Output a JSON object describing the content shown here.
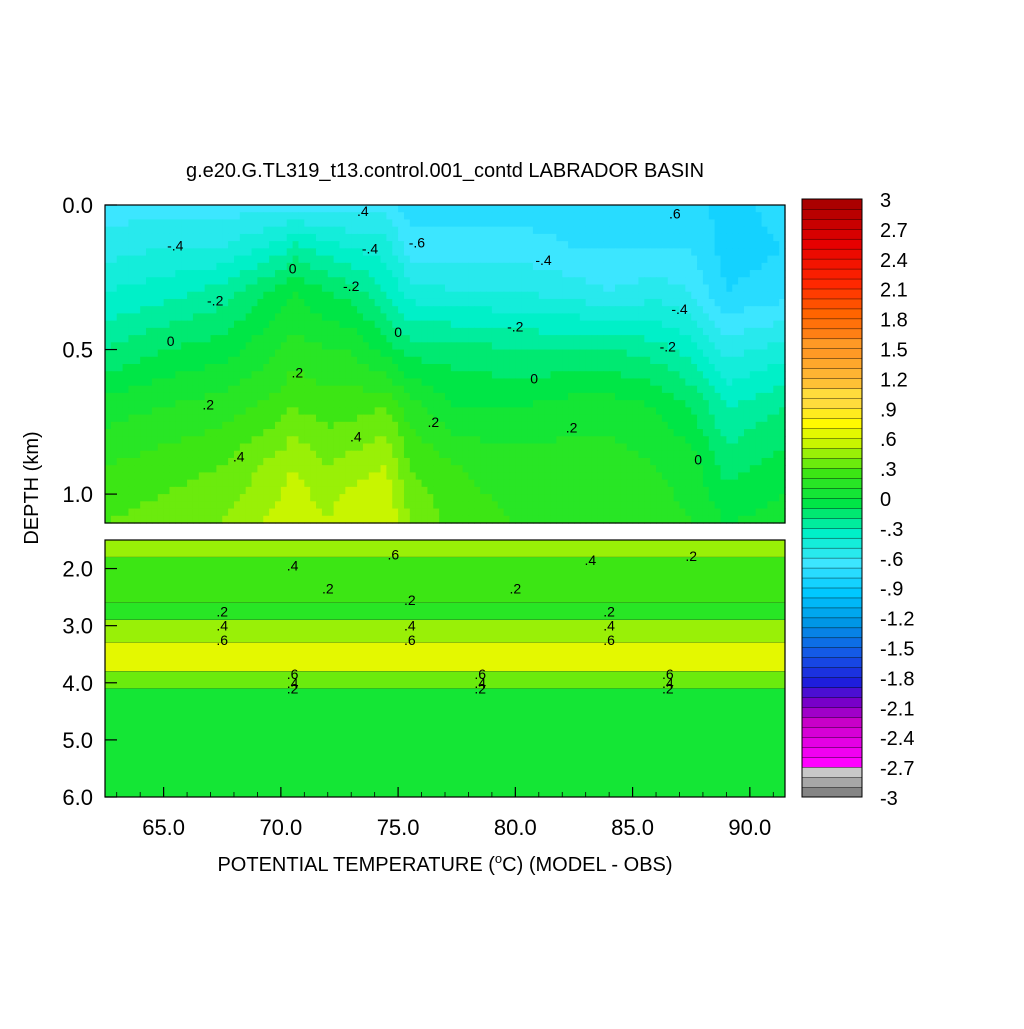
{
  "chart_data": {
    "type": "heatmap",
    "title": "g.e20.G.TL319_t13.control.001_contd LABRADOR BASIN",
    "xlabel_main": "POTENTIAL TEMPERATURE (",
    "xlabel_sup": "o",
    "xlabel_rest": "C) (MODEL - OBS)",
    "ylabel": "DEPTH (km)",
    "xlim": [
      62.5,
      91.5
    ],
    "x_ticks": [
      65.0,
      70.0,
      75.0,
      80.0,
      85.0,
      90.0
    ],
    "x_tick_labels": [
      "65.0",
      "70.0",
      "75.0",
      "80.0",
      "85.0",
      "90.0"
    ],
    "upper_panel": {
      "ylim": [
        0.0,
        1.1
      ],
      "y_ticks": [
        0.0,
        0.5,
        1.0
      ],
      "y_tick_labels": [
        "0.0",
        "0.5",
        "1.0"
      ]
    },
    "lower_panel": {
      "ylim": [
        1.5,
        6.0
      ],
      "y_ticks": [
        2.0,
        3.0,
        4.0,
        5.0,
        6.0
      ],
      "y_tick_labels": [
        "2.0",
        "3.0",
        "4.0",
        "5.0",
        "6.0"
      ]
    },
    "colorbar": {
      "labels": [
        "3",
        "2.7",
        "2.4",
        "2.1",
        "1.8",
        "1.5",
        "1.2",
        ".9",
        ".6",
        ".3",
        "0",
        "-.3",
        "-.6",
        "-.9",
        "-1.2",
        "-1.5",
        "-1.8",
        "-2.1",
        "-2.4",
        "-2.7",
        "-3"
      ],
      "min": -3,
      "max": 3,
      "step": 0.1
    },
    "upper_profiles": {
      "x": [
        62.5,
        65,
        67.5,
        70,
        70.5,
        72,
        73,
        74.5,
        75.5,
        77.5,
        80,
        82.5,
        84,
        86,
        87.5,
        89,
        91.5
      ],
      "depth_0.0": [
        -0.6,
        -0.6,
        -0.6,
        -0.6,
        -0.6,
        -0.6,
        -0.6,
        -0.6,
        -0.7,
        -0.7,
        -0.7,
        -0.7,
        -0.7,
        -0.7,
        -0.7,
        -0.8,
        -0.7
      ],
      "depth_0.15": [
        -0.5,
        -0.45,
        -0.45,
        -0.3,
        -0.2,
        -0.3,
        -0.35,
        -0.4,
        -0.6,
        -0.6,
        -0.6,
        -0.65,
        -0.65,
        -0.65,
        -0.65,
        -0.8,
        -0.75
      ],
      "depth_0.3": [
        -0.35,
        -0.3,
        -0.2,
        0.0,
        0.05,
        -0.05,
        -0.1,
        -0.25,
        -0.4,
        -0.45,
        -0.45,
        -0.5,
        -0.55,
        -0.5,
        -0.55,
        -0.75,
        -0.7
      ],
      "depth_0.5": [
        -0.15,
        -0.05,
        0.0,
        0.15,
        0.2,
        0.15,
        0.15,
        0.0,
        -0.1,
        -0.1,
        -0.15,
        -0.15,
        -0.15,
        -0.2,
        -0.3,
        -0.5,
        -0.4
      ],
      "depth_0.7": [
        0.1,
        0.15,
        0.2,
        0.3,
        0.35,
        0.3,
        0.3,
        0.35,
        0.2,
        0.05,
        0.05,
        0.1,
        0.1,
        0.05,
        -0.05,
        -0.25,
        -0.15
      ],
      "depth_0.9": [
        0.25,
        0.3,
        0.35,
        0.5,
        0.55,
        0.45,
        0.5,
        0.55,
        0.35,
        0.25,
        0.2,
        0.2,
        0.2,
        0.15,
        0.1,
        -0.1,
        0.0
      ],
      "depth_1.1": [
        0.35,
        0.4,
        0.45,
        0.6,
        0.65,
        0.55,
        0.65,
        0.65,
        0.45,
        0.3,
        0.25,
        0.25,
        0.25,
        0.2,
        0.15,
        0.05,
        0.1
      ]
    },
    "lower_bands": [
      {
        "depth": [
          1.5,
          1.8
        ],
        "value": 0.5
      },
      {
        "depth": [
          1.8,
          2.6
        ],
        "value": 0.35
      },
      {
        "depth": [
          2.6,
          2.9
        ],
        "value": 0.2
      },
      {
        "depth": [
          2.9,
          3.3
        ],
        "value": 0.45
      },
      {
        "depth": [
          3.3,
          3.8
        ],
        "value": 0.65
      },
      {
        "depth": [
          3.8,
          4.1
        ],
        "value": 0.4
      },
      {
        "depth": [
          4.1,
          6.0
        ],
        "value": 0.05
      }
    ],
    "contour_labels": [
      {
        "panel": "upper",
        "text": ".4",
        "x": 73.5,
        "y": 0.02
      },
      {
        "panel": "upper",
        "text": ".6",
        "x": 86.8,
        "y": 0.03
      },
      {
        "panel": "upper",
        "text": "-.4",
        "x": 65.5,
        "y": 0.14
      },
      {
        "panel": "upper",
        "text": "-.6",
        "x": 75.8,
        "y": 0.13
      },
      {
        "panel": "upper",
        "text": "-.4",
        "x": 73.8,
        "y": 0.15
      },
      {
        "panel": "upper",
        "text": "0",
        "x": 70.5,
        "y": 0.22
      },
      {
        "panel": "upper",
        "text": "-.4",
        "x": 81.2,
        "y": 0.19
      },
      {
        "panel": "upper",
        "text": "-.2",
        "x": 73.0,
        "y": 0.28
      },
      {
        "panel": "upper",
        "text": "-.2",
        "x": 67.2,
        "y": 0.33
      },
      {
        "panel": "upper",
        "text": "-.4",
        "x": 87.0,
        "y": 0.36
      },
      {
        "panel": "upper",
        "text": "-.2",
        "x": 80.0,
        "y": 0.42
      },
      {
        "panel": "upper",
        "text": "0",
        "x": 75.0,
        "y": 0.44
      },
      {
        "panel": "upper",
        "text": "0",
        "x": 65.3,
        "y": 0.47
      },
      {
        "panel": "upper",
        "text": "-.2",
        "x": 86.5,
        "y": 0.49
      },
      {
        "panel": "upper",
        "text": ".2",
        "x": 70.7,
        "y": 0.58
      },
      {
        "panel": "upper",
        "text": "0",
        "x": 80.8,
        "y": 0.6
      },
      {
        "panel": "upper",
        "text": ".2",
        "x": 66.9,
        "y": 0.69
      },
      {
        "panel": "upper",
        "text": ".2",
        "x": 76.5,
        "y": 0.75
      },
      {
        "panel": "upper",
        "text": ".2",
        "x": 82.4,
        "y": 0.77
      },
      {
        "panel": "upper",
        "text": ".4",
        "x": 73.2,
        "y": 0.8
      },
      {
        "panel": "upper",
        "text": ".4",
        "x": 68.2,
        "y": 0.87
      },
      {
        "panel": "upper",
        "text": "0",
        "x": 87.8,
        "y": 0.88
      },
      {
        "panel": "lower",
        "text": ".6",
        "x": 74.8,
        "y": 1.75
      },
      {
        "panel": "lower",
        "text": ".4",
        "x": 70.5,
        "y": 1.95
      },
      {
        "panel": "lower",
        "text": ".4",
        "x": 83.2,
        "y": 1.85
      },
      {
        "panel": "lower",
        "text": ".2",
        "x": 87.5,
        "y": 1.78
      },
      {
        "panel": "lower",
        "text": ".2",
        "x": 72.0,
        "y": 2.35
      },
      {
        "panel": "lower",
        "text": ".2",
        "x": 75.5,
        "y": 2.55
      },
      {
        "panel": "lower",
        "text": ".2",
        "x": 80.0,
        "y": 2.35
      },
      {
        "panel": "lower",
        "text": ".2",
        "x": 67.5,
        "y": 2.75
      },
      {
        "panel": "lower",
        "text": ".2",
        "x": 84.0,
        "y": 2.75
      },
      {
        "panel": "lower",
        "text": ".4",
        "x": 67.5,
        "y": 3.0
      },
      {
        "panel": "lower",
        "text": ".4",
        "x": 75.5,
        "y": 3.0
      },
      {
        "panel": "lower",
        "text": ".4",
        "x": 84.0,
        "y": 3.0
      },
      {
        "panel": "lower",
        "text": ".6",
        "x": 67.5,
        "y": 3.25
      },
      {
        "panel": "lower",
        "text": ".6",
        "x": 75.5,
        "y": 3.25
      },
      {
        "panel": "lower",
        "text": ".6",
        "x": 84.0,
        "y": 3.25
      },
      {
        "panel": "lower",
        "text": ".6",
        "x": 70.5,
        "y": 3.85
      },
      {
        "panel": "lower",
        "text": ".4",
        "x": 70.5,
        "y": 4.0
      },
      {
        "panel": "lower",
        "text": ".2",
        "x": 70.5,
        "y": 4.1
      },
      {
        "panel": "lower",
        "text": ".6",
        "x": 78.5,
        "y": 3.85
      },
      {
        "panel": "lower",
        "text": ".4",
        "x": 78.5,
        "y": 4.0
      },
      {
        "panel": "lower",
        "text": ".2",
        "x": 78.5,
        "y": 4.1
      },
      {
        "panel": "lower",
        "text": ".6",
        "x": 86.5,
        "y": 3.85
      },
      {
        "panel": "lower",
        "text": ".4",
        "x": 86.5,
        "y": 4.0
      },
      {
        "panel": "lower",
        "text": ".2",
        "x": 86.5,
        "y": 4.1
      }
    ]
  }
}
